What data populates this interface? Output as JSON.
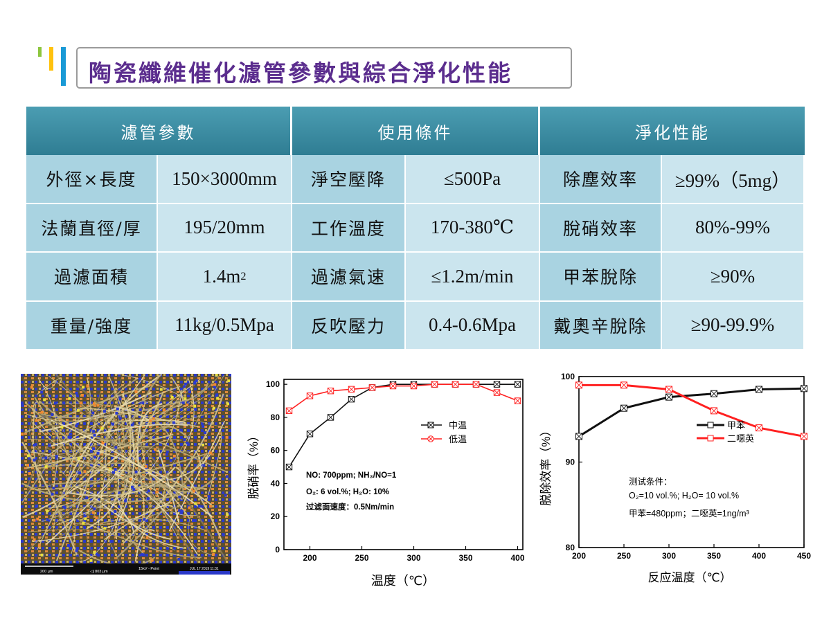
{
  "title": "陶瓷纖維催化濾管參數與綜合淨化性能",
  "table": {
    "headers": [
      "濾管參數",
      "使用條件",
      "淨化性能"
    ],
    "rows": [
      {
        "c1": "外徑×長度",
        "c2": "150×3000mm",
        "c3": "淨空壓降",
        "c4": "≤500Pa",
        "c5": "除塵效率",
        "c6": "≥99%（5mg）"
      },
      {
        "c1": "法蘭直徑/厚",
        "c2": "195/20mm",
        "c3": "工作溫度",
        "c4": "170-380℃",
        "c5": "脫硝效率",
        "c6": "80%-99%"
      },
      {
        "c1": "過濾面積",
        "c2": "1.4m",
        "c2_sup": "2",
        "c3": "過濾氣速",
        "c4": "≤1.2m/min",
        "c5": "甲苯脫除",
        "c6": "≥90%"
      },
      {
        "c1": "重量/強度",
        "c2": "11kg/0.5Mpa",
        "c3": "反吹壓力",
        "c4": "0.4-0.6Mpa",
        "c5": "戴奧辛脫除",
        "c6": "≥90-99.9%"
      }
    ]
  },
  "sem": {
    "scale": "200 µm",
    "scale2": "200 µm",
    "info1": "15kV - Point",
    "info2": "JUL 17 2019 11:31",
    "magnification": "◁| 803 µm"
  },
  "chart_data": [
    {
      "type": "line",
      "xlabel": "温度（℃）",
      "ylabel": "脱硝率（%）",
      "xlim": [
        175,
        405
      ],
      "ylim": [
        0,
        103
      ],
      "xticks": [
        200,
        250,
        300,
        350,
        400
      ],
      "yticks": [
        0,
        20,
        40,
        60,
        80,
        100
      ],
      "series": [
        {
          "name": "中温",
          "color": "#111111",
          "x": [
            180,
            200,
            220,
            240,
            260,
            280,
            300,
            320,
            340,
            360,
            380,
            400
          ],
          "y": [
            50,
            70,
            80,
            91,
            98,
            100,
            100,
            100,
            100,
            100,
            100,
            100
          ]
        },
        {
          "name": "低温",
          "color": "#ff2020",
          "x": [
            180,
            200,
            220,
            240,
            260,
            280,
            300,
            320,
            340,
            360,
            380,
            400
          ],
          "y": [
            84,
            93,
            96,
            97,
            98,
            99,
            99,
            100,
            100,
            100,
            95,
            90
          ]
        }
      ],
      "annotations": [
        "NO: 700ppm; NH₃/NO=1",
        "O₂: 6 vol.%; H₂O: 10%",
        "过滤面速度：0.5Nm/min"
      ]
    },
    {
      "type": "line",
      "xlabel": "反应温度（℃）",
      "ylabel": "脱除效率（%）",
      "xlim": [
        200,
        450
      ],
      "ylim": [
        80,
        100
      ],
      "xticks": [
        200,
        250,
        300,
        350,
        400,
        450
      ],
      "yticks": [
        80,
        90,
        100
      ],
      "series": [
        {
          "name": "甲苯",
          "color": "#111111",
          "x": [
            200,
            250,
            300,
            350,
            400,
            450
          ],
          "y": [
            93.0,
            96.3,
            97.6,
            98.0,
            98.5,
            98.6
          ]
        },
        {
          "name": "二噁英",
          "color": "#ff2020",
          "x": [
            200,
            250,
            300,
            350,
            400,
            450
          ],
          "y": [
            99.0,
            99.0,
            98.5,
            96.0,
            94.0,
            93.0
          ]
        }
      ],
      "annotations": [
        "测试条件：",
        "O₂=10 vol.%; H₂O= 10 vol.%",
        "甲苯=480ppm；二噁英=1ng/m³"
      ]
    }
  ]
}
